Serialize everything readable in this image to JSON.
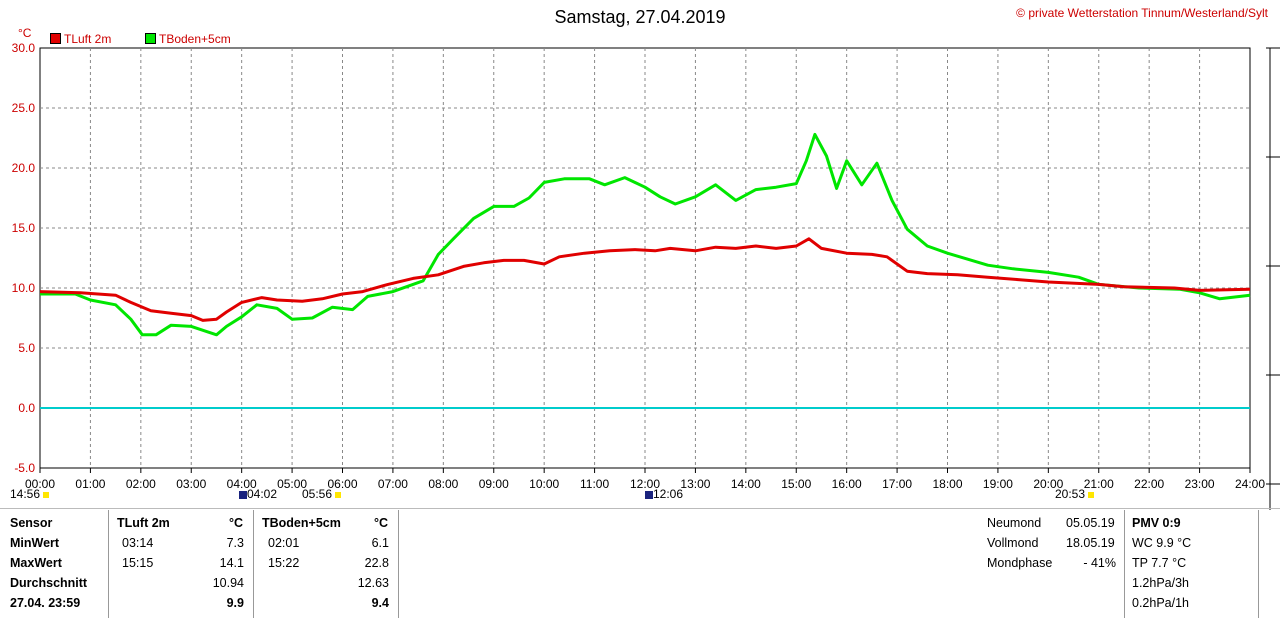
{
  "title": "Samstag, 27.04.2019",
  "copyright": "© private Wetterstation Tinnum/Westerland/Sylt",
  "unit": "°C",
  "legend": [
    {
      "name": "TLuft 2m",
      "color": "#e00000"
    },
    {
      "name": "TBoden+5cm",
      "color": "#00e600"
    }
  ],
  "time_markers": [
    {
      "label": "14:56",
      "icon": "sun-icon"
    },
    {
      "label": "04:02",
      "icon": "moon-icon"
    },
    {
      "label": "05:56",
      "icon": "sun-icon"
    },
    {
      "label": "12:06",
      "icon": "moon-icon"
    },
    {
      "label": "20:53",
      "icon": "sun-icon"
    }
  ],
  "chart_data": {
    "type": "line",
    "title": "Samstag, 27.04.2019",
    "ylabel": "°C",
    "ylim": [
      -5,
      30
    ],
    "yticks": [
      "30.0",
      "25.0",
      "20.0",
      "15.0",
      "10.0",
      "5.0",
      "0.0",
      "-5.0"
    ],
    "xlim": [
      0,
      24
    ],
    "xticks": [
      "00:00",
      "01:00",
      "02:00",
      "03:00",
      "04:00",
      "05:00",
      "06:00",
      "07:00",
      "08:00",
      "09:00",
      "10:00",
      "11:00",
      "12:00",
      "13:00",
      "14:00",
      "15:00",
      "16:00",
      "17:00",
      "18:00",
      "19:00",
      "20:00",
      "21:00",
      "22:00",
      "23:00",
      "24:00"
    ],
    "grid": true,
    "legend_position": "top-left",
    "reference_line": {
      "y": 0,
      "color": "#00cccc"
    },
    "series": [
      {
        "name": "TLuft 2m",
        "color": "#e00000",
        "points": [
          [
            0,
            9.7
          ],
          [
            0.8,
            9.6
          ],
          [
            1.5,
            9.4
          ],
          [
            1.8,
            8.8
          ],
          [
            2.2,
            8.1
          ],
          [
            2.6,
            7.9
          ],
          [
            3.0,
            7.7
          ],
          [
            3.23,
            7.3
          ],
          [
            3.5,
            7.4
          ],
          [
            3.7,
            8.0
          ],
          [
            4.0,
            8.8
          ],
          [
            4.4,
            9.2
          ],
          [
            4.7,
            9.0
          ],
          [
            5.2,
            8.9
          ],
          [
            5.6,
            9.1
          ],
          [
            6.0,
            9.5
          ],
          [
            6.4,
            9.7
          ],
          [
            6.9,
            10.3
          ],
          [
            7.4,
            10.8
          ],
          [
            7.9,
            11.1
          ],
          [
            8.4,
            11.8
          ],
          [
            8.8,
            12.1
          ],
          [
            9.2,
            12.3
          ],
          [
            9.6,
            12.3
          ],
          [
            10.0,
            12.0
          ],
          [
            10.3,
            12.6
          ],
          [
            10.8,
            12.9
          ],
          [
            11.3,
            13.1
          ],
          [
            11.8,
            13.2
          ],
          [
            12.2,
            13.1
          ],
          [
            12.5,
            13.3
          ],
          [
            13.0,
            13.1
          ],
          [
            13.4,
            13.4
          ],
          [
            13.8,
            13.3
          ],
          [
            14.2,
            13.5
          ],
          [
            14.6,
            13.3
          ],
          [
            15.0,
            13.5
          ],
          [
            15.25,
            14.1
          ],
          [
            15.5,
            13.3
          ],
          [
            16.0,
            12.9
          ],
          [
            16.5,
            12.8
          ],
          [
            16.8,
            12.6
          ],
          [
            17.2,
            11.4
          ],
          [
            17.6,
            11.2
          ],
          [
            18.2,
            11.1
          ],
          [
            18.8,
            10.9
          ],
          [
            19.4,
            10.7
          ],
          [
            20.0,
            10.5
          ],
          [
            21.0,
            10.3
          ],
          [
            21.5,
            10.1
          ],
          [
            22.5,
            10.0
          ],
          [
            23.0,
            9.8
          ],
          [
            24.0,
            9.9
          ]
        ]
      },
      {
        "name": "TBoden+5cm",
        "color": "#00e600",
        "points": [
          [
            0,
            9.5
          ],
          [
            0.7,
            9.5
          ],
          [
            1.0,
            9.0
          ],
          [
            1.5,
            8.6
          ],
          [
            1.8,
            7.4
          ],
          [
            2.03,
            6.1
          ],
          [
            2.3,
            6.1
          ],
          [
            2.6,
            6.9
          ],
          [
            3.0,
            6.8
          ],
          [
            3.5,
            6.1
          ],
          [
            3.7,
            6.8
          ],
          [
            4.0,
            7.6
          ],
          [
            4.3,
            8.6
          ],
          [
            4.7,
            8.3
          ],
          [
            5.0,
            7.4
          ],
          [
            5.4,
            7.5
          ],
          [
            5.8,
            8.4
          ],
          [
            6.2,
            8.2
          ],
          [
            6.5,
            9.3
          ],
          [
            7.0,
            9.7
          ],
          [
            7.6,
            10.6
          ],
          [
            7.9,
            12.8
          ],
          [
            8.2,
            14.1
          ],
          [
            8.6,
            15.8
          ],
          [
            9.0,
            16.8
          ],
          [
            9.4,
            16.8
          ],
          [
            9.7,
            17.5
          ],
          [
            10.0,
            18.8
          ],
          [
            10.4,
            19.1
          ],
          [
            10.9,
            19.1
          ],
          [
            11.2,
            18.6
          ],
          [
            11.6,
            19.2
          ],
          [
            12.0,
            18.4
          ],
          [
            12.3,
            17.6
          ],
          [
            12.6,
            17.0
          ],
          [
            13.0,
            17.6
          ],
          [
            13.4,
            18.6
          ],
          [
            13.8,
            17.3
          ],
          [
            14.2,
            18.2
          ],
          [
            14.6,
            18.4
          ],
          [
            15.0,
            18.7
          ],
          [
            15.2,
            20.6
          ],
          [
            15.37,
            22.8
          ],
          [
            15.6,
            21.0
          ],
          [
            15.8,
            18.3
          ],
          [
            16.0,
            20.6
          ],
          [
            16.3,
            18.6
          ],
          [
            16.6,
            20.4
          ],
          [
            16.9,
            17.3
          ],
          [
            17.2,
            14.9
          ],
          [
            17.6,
            13.5
          ],
          [
            18.0,
            12.9
          ],
          [
            18.4,
            12.4
          ],
          [
            18.8,
            11.9
          ],
          [
            19.3,
            11.6
          ],
          [
            20.0,
            11.3
          ],
          [
            20.6,
            10.9
          ],
          [
            21.0,
            10.3
          ],
          [
            21.8,
            10.0
          ],
          [
            22.6,
            9.9
          ],
          [
            23.0,
            9.6
          ],
          [
            23.4,
            9.1
          ],
          [
            24.0,
            9.4
          ]
        ]
      }
    ]
  },
  "table": {
    "headers": {
      "sensor": "Sensor",
      "col1": "TLuft 2m",
      "unit1": "°C",
      "col2": "TBoden+5cm",
      "unit2": "°C"
    },
    "rows": [
      {
        "label": "MinWert",
        "t1": "03:14",
        "v1": "7.3",
        "t2": "02:01",
        "v2": "6.1"
      },
      {
        "label": "MaxWert",
        "t1": "15:15",
        "v1": "14.1",
        "t2": "15:22",
        "v2": "22.8"
      },
      {
        "label": "Durchschnitt",
        "t1": "",
        "v1": "10.94",
        "t2": "",
        "v2": "12.63"
      },
      {
        "label": "27.04. 23:59",
        "t1": "",
        "v1": "9.9",
        "t2": "",
        "v2": "9.4"
      }
    ],
    "moon": [
      {
        "label": "Neumond",
        "value": "05.05.19"
      },
      {
        "label": "Vollmond",
        "value": "18.05.19"
      },
      {
        "label": "Mondphase",
        "value": "- 41%"
      }
    ],
    "extra": {
      "pmv": "PMV 0:9",
      "wc": "WC 9.9 °C",
      "tp": "TP 7.7 °C",
      "p3h": "1.2hPa/3h",
      "p1h": "0.2hPa/1h"
    }
  }
}
